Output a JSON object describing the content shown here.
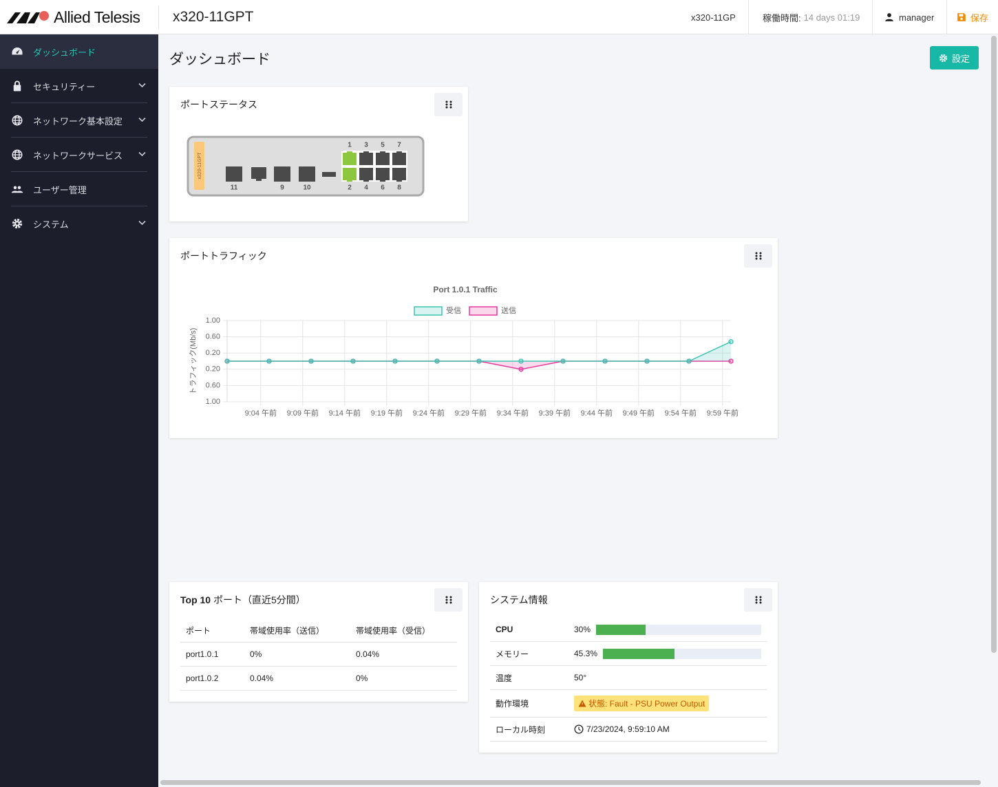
{
  "header": {
    "brand": "Allied Telesis",
    "device": "x320-11GPT",
    "model": "x320-11GP",
    "uptime_label": "稼働時間:",
    "uptime": "14 days 01:19",
    "user": "manager",
    "save": "保存"
  },
  "sidebar": [
    {
      "label": "ダッシュボード",
      "active": true,
      "expandable": false
    },
    {
      "label": "セキュリティー",
      "active": false,
      "expandable": true
    },
    {
      "label": "ネットワーク基本設定",
      "active": false,
      "expandable": true
    },
    {
      "label": "ネットワークサービス",
      "active": false,
      "expandable": true
    },
    {
      "label": "ユーザー管理",
      "active": false,
      "expandable": false
    },
    {
      "label": "システム",
      "active": false,
      "expandable": true
    }
  ],
  "page": {
    "title": "ダッシュボード",
    "settings": "設定"
  },
  "port_status": {
    "title": "ポートステータス",
    "device": "x320-11GPT",
    "ports": [
      {
        "label": "1",
        "up": true
      },
      {
        "label": "2",
        "up": true
      },
      {
        "label": "3",
        "up": false
      },
      {
        "label": "4",
        "up": false
      },
      {
        "label": "5",
        "up": false
      },
      {
        "label": "6",
        "up": false
      },
      {
        "label": "7",
        "up": false
      },
      {
        "label": "8",
        "up": false
      },
      {
        "label": "9",
        "up": false
      },
      {
        "label": "10",
        "up": false
      },
      {
        "label": "11",
        "up": false
      }
    ]
  },
  "port_traffic": {
    "title": "ポートトラフィック",
    "chart_data": {
      "type": "line",
      "title": "Port 1.0.1 Traffic",
      "y_label": "トラフィック(Mb/s)",
      "x": [
        0,
        5,
        10,
        15,
        20,
        25,
        30,
        35,
        40,
        45,
        50,
        55,
        60
      ],
      "xlim": [
        0,
        60
      ],
      "xticks": [
        {
          "value": 4,
          "label": "9:04 午前"
        },
        {
          "value": 9,
          "label": "9:09 午前"
        },
        {
          "value": 14,
          "label": "9:14 午前"
        },
        {
          "value": 19,
          "label": "9:19 午前"
        },
        {
          "value": 24,
          "label": "9:24 午前"
        },
        {
          "value": 29,
          "label": "9:29 午前"
        },
        {
          "value": 34,
          "label": "9:34 午前"
        },
        {
          "value": 39,
          "label": "9:39 午前"
        },
        {
          "value": 44,
          "label": "9:44 午前"
        },
        {
          "value": 49,
          "label": "9:49 午前"
        },
        {
          "value": 54,
          "label": "9:54 午前"
        },
        {
          "value": 59,
          "label": "9:59 午前"
        }
      ],
      "ylim": [
        -1,
        1
      ],
      "yticks": [
        {
          "value": 1,
          "label": "1.00"
        },
        {
          "value": 0.6,
          "label": "0.60"
        },
        {
          "value": 0.2,
          "label": "0.20"
        },
        {
          "value": -0.2,
          "label": "0.20"
        },
        {
          "value": -0.6,
          "label": "0.60"
        },
        {
          "value": -1,
          "label": "1.00"
        }
      ],
      "grid": true,
      "legend": "top",
      "series": [
        {
          "name": "受信",
          "color": "#3cc4b2",
          "values": [
            0,
            0,
            0,
            0,
            0,
            0,
            0,
            0,
            0,
            0,
            0,
            0,
            0.48
          ]
        },
        {
          "name": "送信",
          "color": "#e6399b",
          "values": [
            0,
            0,
            0,
            0,
            0,
            0,
            0,
            -0.2,
            0,
            0,
            0,
            0,
            0
          ]
        }
      ]
    }
  },
  "top_ports": {
    "title_bold": "Top 10",
    "title": "ポート（直近5分間）",
    "columns": [
      "ポート",
      "帯域使用率（送信）",
      "帯域使用率（受信）"
    ],
    "rows": [
      [
        "port1.0.1",
        "0%",
        "0.04%"
      ],
      [
        "port1.0.2",
        "0.04%",
        "0%"
      ]
    ]
  },
  "system_info": {
    "title": "システム情報",
    "rows": [
      {
        "label": "CPU",
        "value": 30,
        "value_label": "30%"
      },
      {
        "label": "メモリー",
        "value": 45.3,
        "value_label": "45.3%"
      },
      {
        "label": "温度",
        "text": "50°"
      },
      {
        "label": "動作環境",
        "alert": "状態: Fault - PSU Power Output"
      },
      {
        "label": "ローカル時刻",
        "time": "7/23/2024, 9:59:10 AM"
      }
    ]
  }
}
